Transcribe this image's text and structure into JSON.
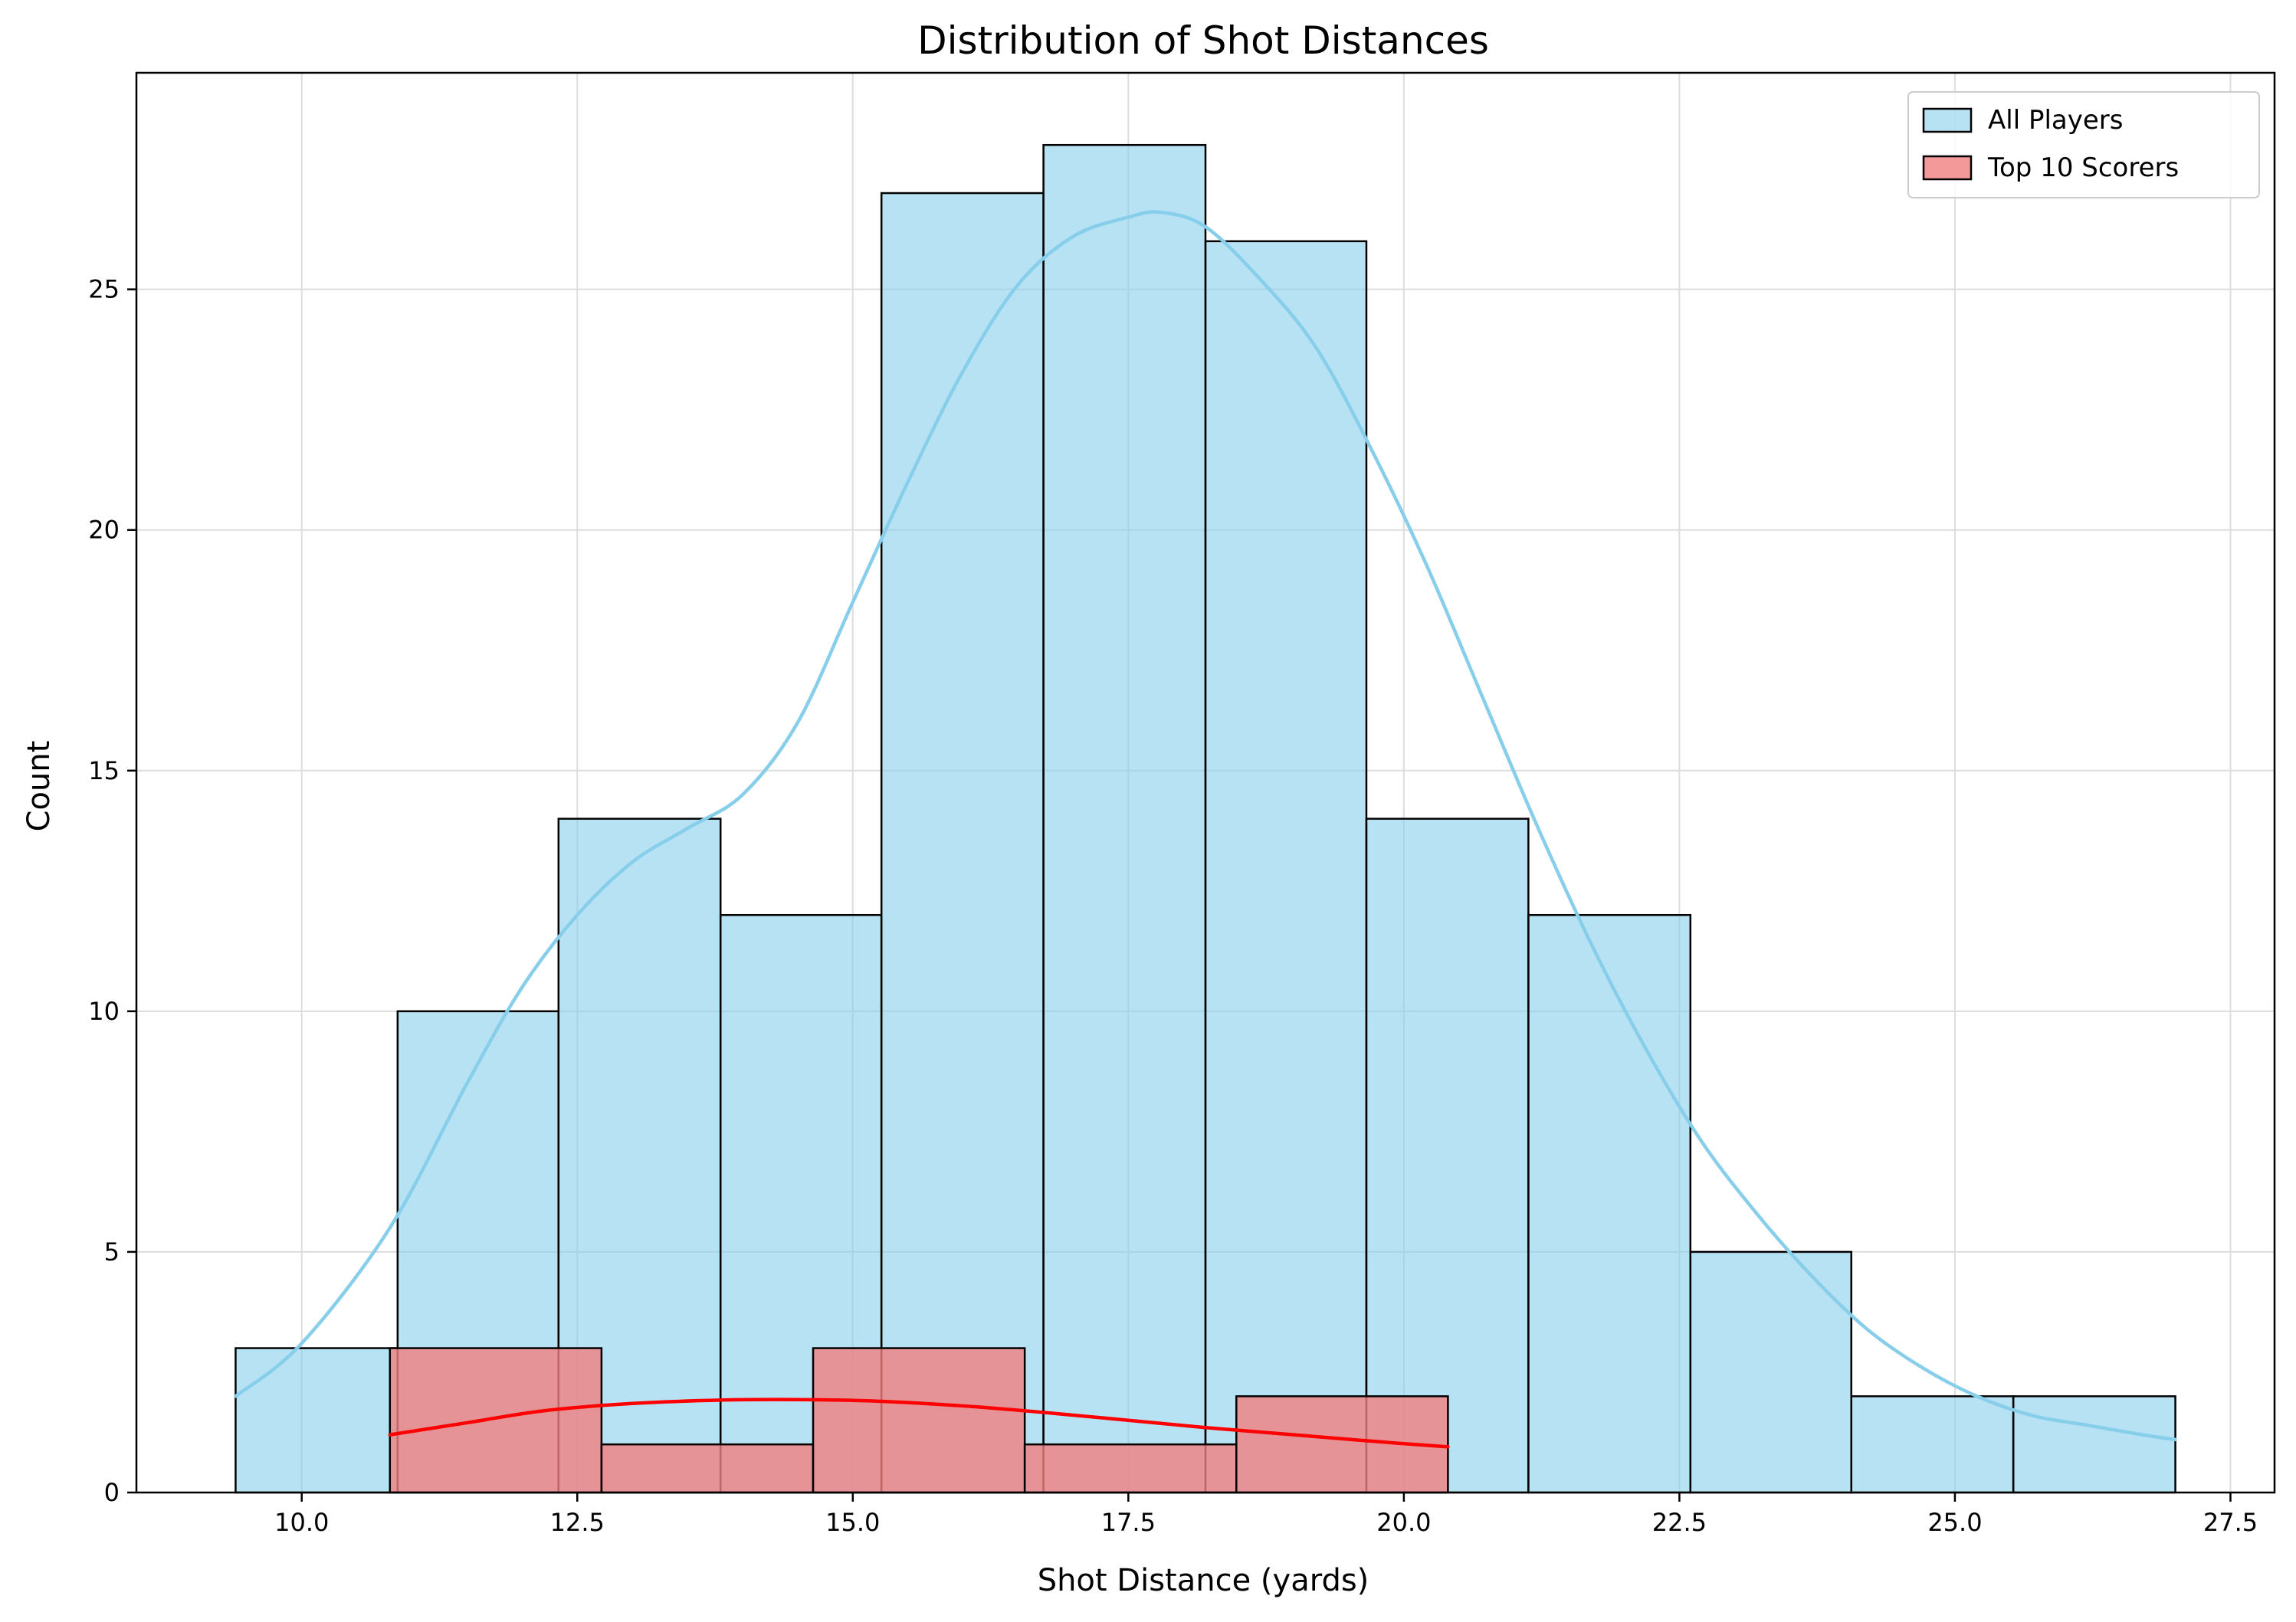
{
  "chart_data": {
    "type": "bar",
    "title": "Distribution of Shot Distances",
    "xlabel": "Shot Distance (yards)",
    "ylabel": "Count",
    "xlim": [
      8.5,
      27.9
    ],
    "ylim": [
      0,
      29.5
    ],
    "xticks": [
      10.0,
      12.5,
      15.0,
      17.5,
      20.0,
      22.5,
      25.0,
      27.5
    ],
    "xtick_labels": [
      "10.0",
      "12.5",
      "15.0",
      "17.5",
      "20.0",
      "22.5",
      "25.0",
      "27.5"
    ],
    "yticks": [
      0,
      5,
      10,
      15,
      20,
      25
    ],
    "ytick_labels": [
      "0",
      "5",
      "10",
      "15",
      "20",
      "25"
    ],
    "grid": true,
    "legend_position": "top-right",
    "series": [
      {
        "name": "All Players",
        "fill_color": "#87CEEB",
        "line_color": "#87CEEB",
        "bin_edges": [
          9.4,
          10.87,
          12.33,
          13.8,
          15.26,
          16.73,
          18.2,
          19.66,
          21.13,
          22.6,
          24.06,
          25.53,
          27.0
        ],
        "counts": [
          3,
          10,
          14,
          12,
          27,
          28,
          26,
          14,
          12,
          5,
          2,
          2
        ],
        "kde_x": [
          9.4,
          10.0,
          10.8,
          11.5,
          12.0,
          12.5,
          13.0,
          13.5,
          14.0,
          14.5,
          15.0,
          15.5,
          16.0,
          16.5,
          17.0,
          17.5,
          17.8,
          18.2,
          18.7,
          19.2,
          19.7,
          20.2,
          20.7,
          21.2,
          21.7,
          22.2,
          22.7,
          23.2,
          23.7,
          24.2,
          24.7,
          25.2,
          25.7,
          26.2,
          26.7,
          27.0
        ],
        "kde_y": [
          2.0,
          3.1,
          5.5,
          8.5,
          10.5,
          12.0,
          13.1,
          13.8,
          14.5,
          16.0,
          18.5,
          21.0,
          23.3,
          25.1,
          26.1,
          26.5,
          26.6,
          26.3,
          25.2,
          23.8,
          21.7,
          19.3,
          16.6,
          13.9,
          11.4,
          9.2,
          7.3,
          5.8,
          4.5,
          3.4,
          2.6,
          2.0,
          1.6,
          1.4,
          1.2,
          1.1
        ]
      },
      {
        "name": "Top 10 Scorers",
        "fill_color": "#F08080",
        "line_color": "#FF0000",
        "bin_edges": [
          10.8,
          12.72,
          14.64,
          16.56,
          18.48,
          20.4
        ],
        "counts": [
          3,
          1,
          3,
          1,
          2
        ],
        "kde_x": [
          10.8,
          11.5,
          12.2,
          13.0,
          13.8,
          14.5,
          15.2,
          16.0,
          16.8,
          17.5,
          18.2,
          19.0,
          19.8,
          20.4
        ],
        "kde_y": [
          1.2,
          1.45,
          1.7,
          1.85,
          1.92,
          1.93,
          1.9,
          1.8,
          1.65,
          1.5,
          1.35,
          1.2,
          1.05,
          0.95
        ]
      }
    ]
  }
}
